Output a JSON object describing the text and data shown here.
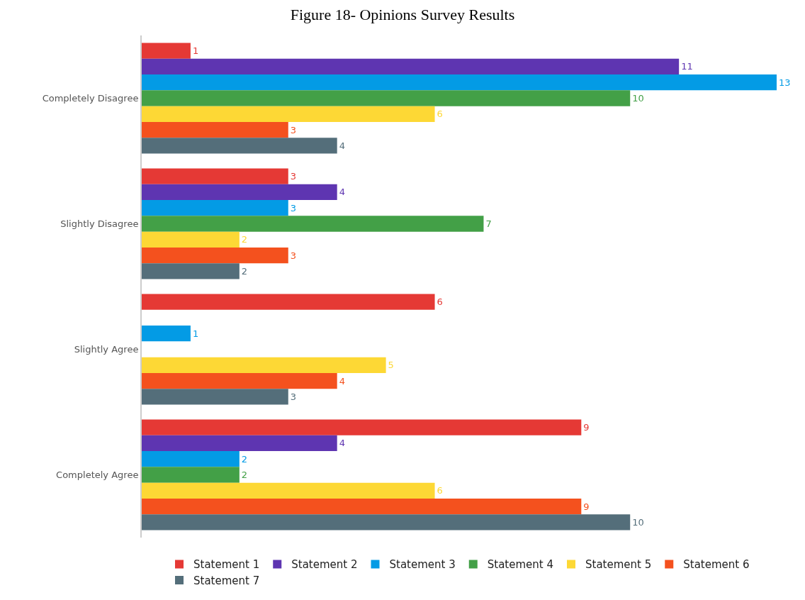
{
  "chart_data": {
    "type": "bar",
    "title": "Figure 18- Opinions Survey Results",
    "orientation": "horizontal",
    "categories": [
      "Completely Disagree",
      "Slightly Disagree",
      "Slightly Agree",
      "Completely Agree"
    ],
    "series": [
      {
        "name": "Statement 1",
        "color": "#e53935",
        "values": [
          1,
          3,
          6,
          9
        ]
      },
      {
        "name": "Statement 2",
        "color": "#5e35b1",
        "values": [
          11,
          4,
          null,
          4
        ]
      },
      {
        "name": "Statement 3",
        "color": "#039be5",
        "values": [
          13,
          3,
          1,
          2
        ]
      },
      {
        "name": "Statement 4",
        "color": "#43a047",
        "values": [
          10,
          7,
          null,
          2
        ]
      },
      {
        "name": "Statement 5",
        "color": "#fdd835",
        "values": [
          6,
          2,
          5,
          6
        ]
      },
      {
        "name": "Statement 6",
        "color": "#f4511e",
        "values": [
          3,
          3,
          4,
          9
        ]
      },
      {
        "name": "Statement 7",
        "color": "#546e7a",
        "values": [
          4,
          2,
          3,
          10
        ]
      }
    ],
    "xlim": [
      0,
      13
    ],
    "tick_labels": "y",
    "data_labels": true,
    "grid": false,
    "legend": "bottom"
  }
}
